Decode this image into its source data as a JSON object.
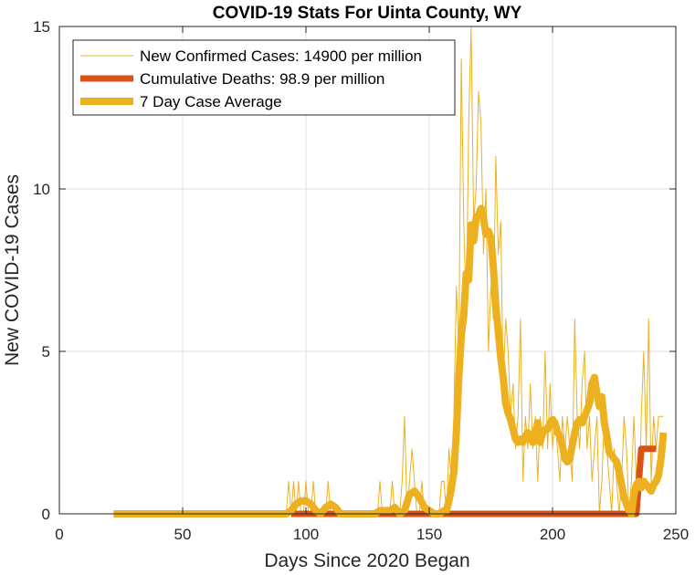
{
  "chart_data": {
    "type": "line",
    "title": "COVID-19 Stats For Uinta County, WY",
    "xlabel": "Days Since 2020 Began",
    "ylabel": "New COVID-19 Cases",
    "xlim": [
      0,
      250
    ],
    "ylim": [
      0,
      15
    ],
    "xticks": [
      0,
      50,
      100,
      150,
      200,
      250
    ],
    "yticks": [
      0,
      5,
      10,
      15
    ],
    "grid": true,
    "legend_position": "top-left",
    "series": [
      {
        "name": "New Confirmed Cases: 14900 per million",
        "color": "#EDB120",
        "x": [
          22,
          40,
          60,
          80,
          92,
          93,
          94,
          95,
          96,
          97,
          98,
          99,
          100,
          101,
          102,
          103,
          104,
          105,
          106,
          107,
          108,
          109,
          110,
          111,
          112,
          113,
          114,
          115,
          116,
          120,
          125,
          128,
          129,
          130,
          131,
          132,
          133,
          134,
          135,
          136,
          137,
          138,
          139,
          140,
          141,
          142,
          143,
          144,
          145,
          146,
          147,
          148,
          149,
          150,
          151,
          152,
          153,
          154,
          155,
          156,
          157,
          158,
          159,
          160,
          161,
          162,
          163,
          164,
          165,
          166,
          167,
          168,
          169,
          170,
          171,
          172,
          173,
          174,
          175,
          176,
          177,
          178,
          179,
          180,
          181,
          182,
          183,
          184,
          185,
          186,
          187,
          188,
          189,
          190,
          191,
          192,
          193,
          194,
          195,
          196,
          197,
          198,
          199,
          200,
          201,
          202,
          203,
          204,
          205,
          206,
          207,
          208,
          209,
          210,
          211,
          212,
          213,
          214,
          215,
          216,
          217,
          218,
          219,
          220,
          221,
          222,
          223,
          224,
          225,
          226,
          227,
          228,
          229,
          230,
          231,
          232,
          233,
          234,
          235,
          236,
          237,
          238,
          239,
          240,
          241,
          242,
          243,
          244,
          245
        ],
        "y": [
          0,
          0,
          0,
          0,
          0,
          1,
          0,
          1,
          0,
          1,
          0,
          0,
          1,
          0,
          0,
          1,
          0,
          0,
          0,
          0,
          0,
          1,
          0,
          0,
          0,
          0,
          0,
          0,
          0,
          0,
          0,
          0,
          0,
          1,
          0,
          0,
          0,
          0,
          1,
          0,
          0,
          0,
          1,
          3,
          0,
          1,
          2,
          1,
          0,
          0,
          1,
          0,
          0,
          0,
          0,
          0,
          0,
          0,
          1,
          1,
          0,
          2,
          1,
          3,
          7,
          5,
          14,
          9,
          6,
          12,
          15,
          9,
          10,
          13,
          12,
          8,
          10,
          5,
          7,
          6,
          11,
          8,
          9,
          4,
          6,
          5,
          3,
          4,
          2,
          3,
          6,
          1,
          3,
          2,
          4,
          2,
          3,
          1,
          3,
          2,
          5,
          2,
          4,
          2,
          3,
          2,
          1,
          3,
          2,
          3,
          2,
          1,
          6,
          3,
          2,
          4,
          5,
          2,
          3,
          1,
          2,
          3,
          0,
          1,
          3,
          2,
          1,
          0,
          2,
          1,
          0,
          1,
          3,
          2,
          0,
          1,
          3,
          1,
          0,
          3,
          5,
          2,
          6,
          1,
          3,
          2,
          3,
          3,
          3
        ]
      },
      {
        "name": "Cumulative Deaths: 98.9 per million",
        "color": "#D95319",
        "x": [
          94,
          232,
          233,
          234,
          235,
          236,
          237,
          238,
          239,
          240,
          241,
          242
        ],
        "y": [
          0,
          0,
          0,
          0,
          1,
          2,
          2,
          2,
          2,
          2,
          2,
          2
        ]
      },
      {
        "name": "7 Day Case Average",
        "color": "#EDB120",
        "x": [
          22,
          40,
          60,
          80,
          92,
          94,
          96,
          98,
          100,
          102,
          104,
          106,
          108,
          110,
          112,
          114,
          116,
          120,
          125,
          128,
          130,
          132,
          134,
          136,
          138,
          140,
          142,
          144,
          146,
          148,
          150,
          152,
          154,
          156,
          157,
          158,
          159,
          160,
          161,
          162,
          163,
          164,
          165,
          166,
          167,
          168,
          169,
          170,
          171,
          172,
          173,
          174,
          175,
          176,
          177,
          178,
          179,
          180,
          181,
          182,
          183,
          184,
          185,
          186,
          187,
          188,
          189,
          190,
          191,
          192,
          193,
          194,
          195,
          196,
          197,
          198,
          199,
          200,
          201,
          202,
          203,
          204,
          205,
          206,
          207,
          208,
          209,
          210,
          211,
          212,
          213,
          214,
          215,
          216,
          217,
          218,
          219,
          220,
          221,
          222,
          223,
          224,
          225,
          226,
          227,
          228,
          229,
          230,
          231,
          232,
          233,
          234,
          235,
          236,
          237,
          238,
          239,
          240,
          241,
          242,
          243,
          244,
          245
        ],
        "y": [
          0,
          0,
          0,
          0,
          0,
          0.1,
          0.3,
          0.4,
          0.4,
          0.3,
          0.1,
          0,
          0.2,
          0.3,
          0.2,
          0,
          0,
          0,
          0,
          0,
          0.1,
          0.1,
          0.1,
          0.2,
          0,
          0.1,
          0.6,
          0.7,
          0.5,
          0.2,
          0.1,
          0,
          0,
          0.1,
          0.1,
          0.4,
          0.8,
          1.3,
          2.5,
          4.2,
          5.5,
          6.1,
          7.4,
          7.2,
          8.9,
          8.4,
          9.1,
          9.2,
          9.4,
          9.1,
          8.6,
          8.7,
          8.5,
          7.6,
          6.4,
          5.6,
          4.8,
          4.2,
          3.4,
          3.1,
          2.9,
          2.6,
          2.3,
          2.2,
          2.3,
          2.2,
          2.4,
          2.5,
          2.4,
          2.2,
          2.5,
          2.8,
          2.2,
          2.5,
          2.6,
          2.6,
          2.8,
          2.9,
          2.8,
          2.5,
          2.4,
          2.1,
          1.7,
          1.6,
          1.7,
          2.1,
          2.5,
          2.8,
          2.9,
          2.8,
          3.0,
          3.2,
          3.4,
          4.0,
          4.2,
          3.7,
          3.3,
          3.6,
          2.8,
          2.4,
          1.9,
          1.8,
          1.7,
          1.6,
          1.3,
          0.9,
          0.5,
          0.3,
          0.1,
          0,
          0.6,
          0.9,
          1.0,
          0.8,
          1.0,
          0.9,
          0.8,
          0.7,
          0.9,
          1.0,
          1.2,
          1.7,
          2.5
        ]
      }
    ]
  }
}
